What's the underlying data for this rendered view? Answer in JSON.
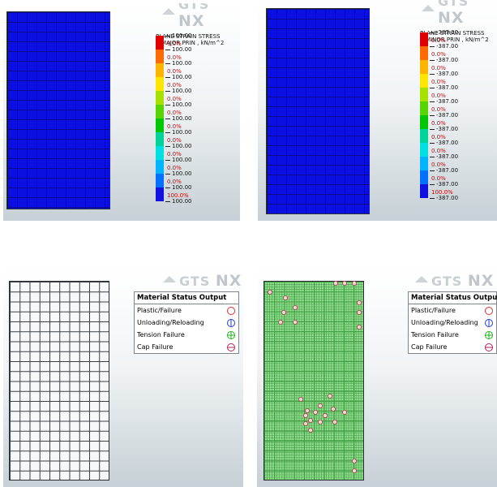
{
  "logo": {
    "top": "midas",
    "brand": "GTS",
    "brand2": "NX"
  },
  "major_panel": {
    "title_line1": "PLANE STRAIN STRESS",
    "title_line2": "S-MAJOR PRIN , kN/m^2",
    "values": [
      "100.00",
      "100.00",
      "100.00",
      "100.00",
      "100.00",
      "100.00",
      "100.00",
      "100.00",
      "100.00",
      "100.00",
      "100.00",
      "100.00",
      "100.00"
    ],
    "percents": [
      "0.0%",
      "0.0%",
      "0.0%",
      "0.0%",
      "0.0%",
      "0.0%",
      "0.0%",
      "0.0%",
      "0.0%",
      "0.0%",
      "0.0%",
      "100.0%"
    ]
  },
  "minor_panel": {
    "title_line1": "PLANE STRAIN STRESS",
    "title_line2": "S-MINOR PRIN , kN/m^2",
    "values": [
      "-387.00",
      "-387.00",
      "-387.00",
      "-387.00",
      "-387.00",
      "-387.00",
      "-387.00",
      "-387.00",
      "-387.00",
      "-387.00",
      "-387.00",
      "-387.00",
      "-387.00"
    ],
    "percents": [
      "0.0%",
      "0.0%",
      "0.0%",
      "0.0%",
      "0.0%",
      "0.0%",
      "0.0%",
      "0.0%",
      "0.0%",
      "0.0%",
      "0.0%",
      "100.0%"
    ]
  },
  "legend_colors": [
    "#e00000",
    "#ff6a00",
    "#ffb400",
    "#ffe600",
    "#a8e000",
    "#58d400",
    "#00c800",
    "#00d49a",
    "#00e0e0",
    "#00b4ff",
    "#0070ff",
    "#1010e0"
  ],
  "material_status": {
    "title": "Material Status Output",
    "rows": [
      {
        "label": "Plastic/Failure",
        "icon": "circle-icon",
        "color": "#e03030"
      },
      {
        "label": "Unloading/Reloading",
        "icon": "circle-line-icon",
        "color": "#2040d0"
      },
      {
        "label": "Tension Failure",
        "icon": "circle-plus-icon",
        "color": "#20b020"
      },
      {
        "label": "Cap Failure",
        "icon": "circle-minus-icon",
        "color": "#b02060"
      }
    ]
  },
  "contour_color": "#0b10e0"
}
